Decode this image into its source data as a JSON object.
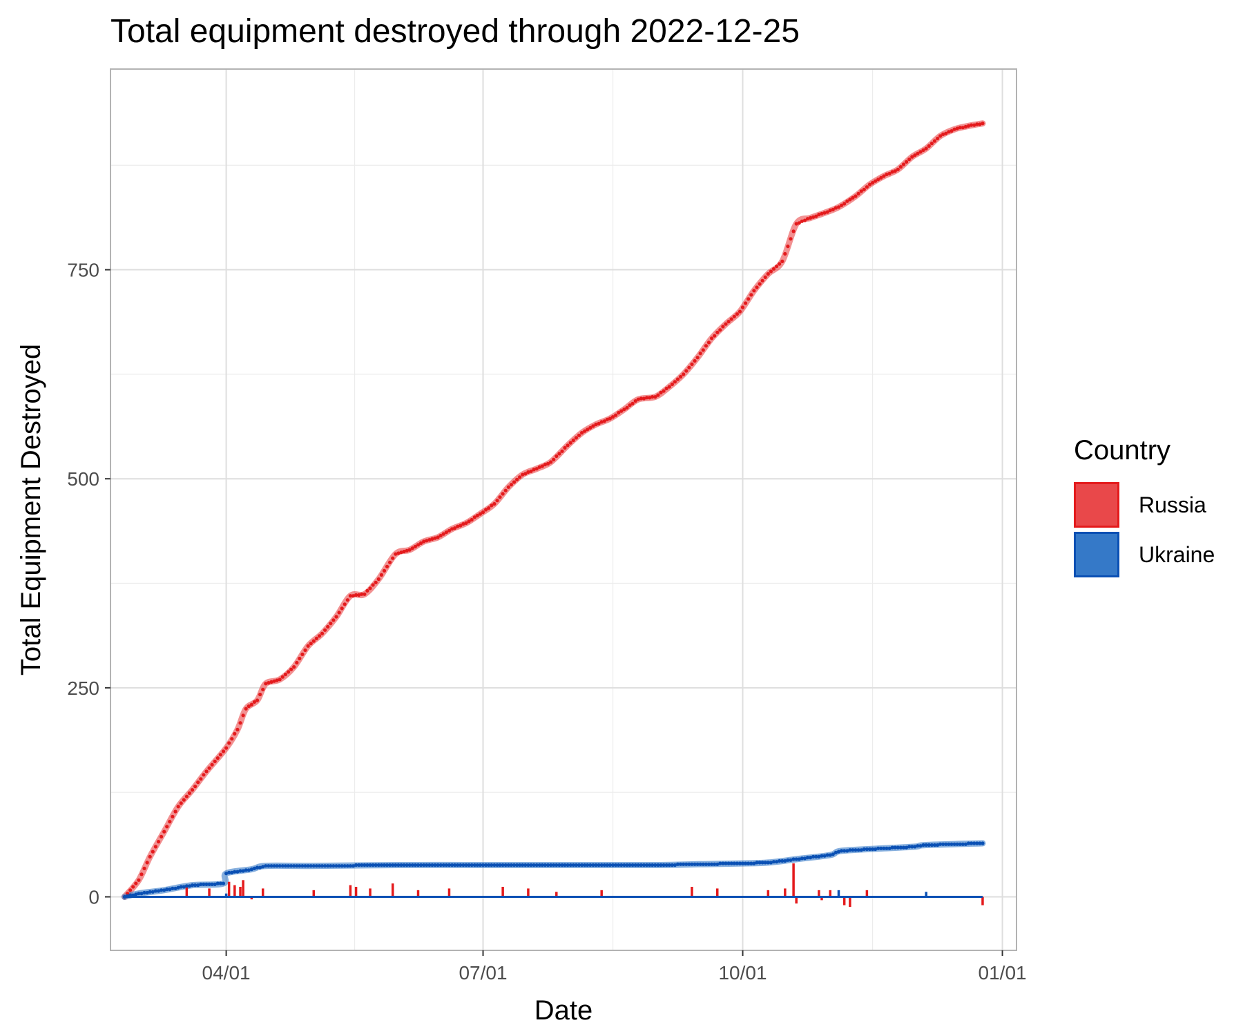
{
  "chart_data": {
    "type": "line",
    "title": "Total equipment destroyed through 2022-12-25",
    "xlabel": "Date",
    "ylabel": "Total Equipment Destroyed",
    "x_range": [
      "2022-02-24",
      "2023-01-04"
    ],
    "xlim": [
      "2022-02-19",
      "2023-01-06"
    ],
    "x_ticks": [
      {
        "date": "2022-04-01",
        "label": "04/01"
      },
      {
        "date": "2022-07-01",
        "label": "07/01"
      },
      {
        "date": "2022-10-01",
        "label": "10/01"
      },
      {
        "date": "2023-01-01",
        "label": "01/01"
      }
    ],
    "ylim": [
      -64,
      990
    ],
    "y_ticks": [
      0,
      250,
      500,
      750
    ],
    "grid": true,
    "legend": {
      "title": "Country",
      "position": "right"
    },
    "series": [
      {
        "name": "Russia",
        "color": "#e41a1c",
        "fill": "#e9484a",
        "cumulative": [
          [
            "2022-02-24",
            0
          ],
          [
            "2022-03-01",
            20
          ],
          [
            "2022-03-05",
            48
          ],
          [
            "2022-03-10",
            78
          ],
          [
            "2022-03-15",
            108
          ],
          [
            "2022-03-20",
            128
          ],
          [
            "2022-03-25",
            150
          ],
          [
            "2022-04-01",
            178
          ],
          [
            "2022-04-05",
            200
          ],
          [
            "2022-04-08",
            225
          ],
          [
            "2022-04-12",
            235
          ],
          [
            "2022-04-15",
            255
          ],
          [
            "2022-04-20",
            260
          ],
          [
            "2022-04-25",
            275
          ],
          [
            "2022-04-30",
            300
          ],
          [
            "2022-05-05",
            315
          ],
          [
            "2022-05-10",
            335
          ],
          [
            "2022-05-15",
            360
          ],
          [
            "2022-05-20",
            362
          ],
          [
            "2022-05-25",
            380
          ],
          [
            "2022-05-31",
            410
          ],
          [
            "2022-06-05",
            415
          ],
          [
            "2022-06-10",
            425
          ],
          [
            "2022-06-15",
            430
          ],
          [
            "2022-06-20",
            440
          ],
          [
            "2022-06-25",
            447
          ],
          [
            "2022-06-30",
            458
          ],
          [
            "2022-07-05",
            470
          ],
          [
            "2022-07-10",
            490
          ],
          [
            "2022-07-15",
            505
          ],
          [
            "2022-07-20",
            512
          ],
          [
            "2022-07-25",
            520
          ],
          [
            "2022-07-31",
            540
          ],
          [
            "2022-08-05",
            555
          ],
          [
            "2022-08-10",
            565
          ],
          [
            "2022-08-15",
            572
          ],
          [
            "2022-08-20",
            583
          ],
          [
            "2022-08-25",
            595
          ],
          [
            "2022-08-31",
            598
          ],
          [
            "2022-09-05",
            610
          ],
          [
            "2022-09-10",
            625
          ],
          [
            "2022-09-15",
            645
          ],
          [
            "2022-09-20",
            668
          ],
          [
            "2022-09-25",
            685
          ],
          [
            "2022-09-30",
            700
          ],
          [
            "2022-10-05",
            725
          ],
          [
            "2022-10-10",
            745
          ],
          [
            "2022-10-15",
            760
          ],
          [
            "2022-10-20",
            805
          ],
          [
            "2022-10-25",
            812
          ],
          [
            "2022-10-30",
            818
          ],
          [
            "2022-11-04",
            825
          ],
          [
            "2022-11-10",
            838
          ],
          [
            "2022-11-15",
            852
          ],
          [
            "2022-11-20",
            862
          ],
          [
            "2022-11-25",
            870
          ],
          [
            "2022-11-30",
            885
          ],
          [
            "2022-12-05",
            895
          ],
          [
            "2022-12-10",
            910
          ],
          [
            "2022-12-15",
            918
          ],
          [
            "2022-12-20",
            922
          ],
          [
            "2022-12-25",
            925
          ]
        ],
        "daily_spikes": [
          [
            "2022-03-18",
            12
          ],
          [
            "2022-03-26",
            10
          ],
          [
            "2022-04-02",
            18
          ],
          [
            "2022-04-04",
            14
          ],
          [
            "2022-04-06",
            12
          ],
          [
            "2022-04-07",
            20
          ],
          [
            "2022-04-10",
            -3
          ],
          [
            "2022-04-14",
            10
          ],
          [
            "2022-05-02",
            8
          ],
          [
            "2022-05-15",
            14
          ],
          [
            "2022-05-17",
            12
          ],
          [
            "2022-05-22",
            10
          ],
          [
            "2022-05-30",
            16
          ],
          [
            "2022-06-08",
            8
          ],
          [
            "2022-06-19",
            10
          ],
          [
            "2022-07-08",
            12
          ],
          [
            "2022-07-17",
            10
          ],
          [
            "2022-07-27",
            6
          ],
          [
            "2022-08-12",
            8
          ],
          [
            "2022-09-13",
            12
          ],
          [
            "2022-09-22",
            10
          ],
          [
            "2022-10-10",
            8
          ],
          [
            "2022-10-16",
            10
          ],
          [
            "2022-10-19",
            40
          ],
          [
            "2022-10-20",
            -8
          ],
          [
            "2022-10-28",
            8
          ],
          [
            "2022-10-29",
            -4
          ],
          [
            "2022-11-01",
            8
          ],
          [
            "2022-11-06",
            -10
          ],
          [
            "2022-11-08",
            -12
          ],
          [
            "2022-11-14",
            8
          ],
          [
            "2022-12-25",
            -10
          ]
        ]
      },
      {
        "name": "Ukraine",
        "color": "#0a50b4",
        "fill": "#3579c8",
        "cumulative": [
          [
            "2022-02-24",
            0
          ],
          [
            "2022-03-01",
            4
          ],
          [
            "2022-03-10",
            8
          ],
          [
            "2022-03-20",
            14
          ],
          [
            "2022-03-31",
            16
          ],
          [
            "2022-04-01",
            28
          ],
          [
            "2022-04-10",
            33
          ],
          [
            "2022-04-15",
            37
          ],
          [
            "2022-05-01",
            37
          ],
          [
            "2022-06-01",
            38
          ],
          [
            "2022-07-01",
            38
          ],
          [
            "2022-08-01",
            38
          ],
          [
            "2022-09-01",
            38
          ],
          [
            "2022-09-15",
            39
          ],
          [
            "2022-10-01",
            40
          ],
          [
            "2022-10-10",
            41
          ],
          [
            "2022-10-20",
            45
          ],
          [
            "2022-11-01",
            50
          ],
          [
            "2022-11-05",
            55
          ],
          [
            "2022-11-20",
            58
          ],
          [
            "2022-12-01",
            60
          ],
          [
            "2022-12-05",
            62
          ],
          [
            "2022-12-25",
            64
          ]
        ],
        "daily_spikes": [
          [
            "2022-04-01",
            4
          ],
          [
            "2022-11-04",
            8
          ],
          [
            "2022-12-05",
            6
          ]
        ]
      }
    ]
  }
}
